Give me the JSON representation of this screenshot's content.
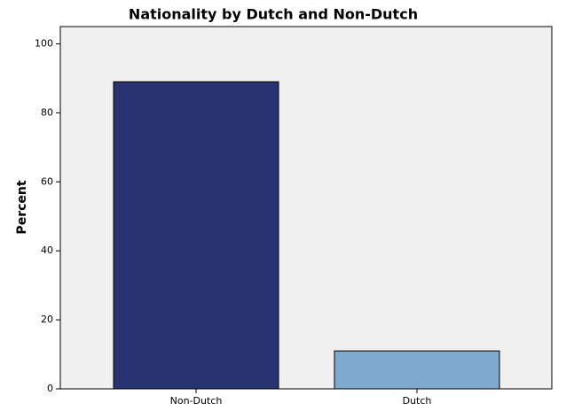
{
  "chart_data": {
    "type": "bar",
    "title": "Nationality by Dutch and Non-Dutch",
    "y_label": "Percent",
    "categories": [
      "Non-Dutch",
      "Dutch"
    ],
    "values": [
      89,
      11
    ],
    "colors": [
      "#283371",
      "#80a9d0"
    ],
    "ylim": [
      0,
      105
    ],
    "yticks": [
      0,
      20,
      40,
      60,
      80,
      100
    ],
    "grid": false
  }
}
